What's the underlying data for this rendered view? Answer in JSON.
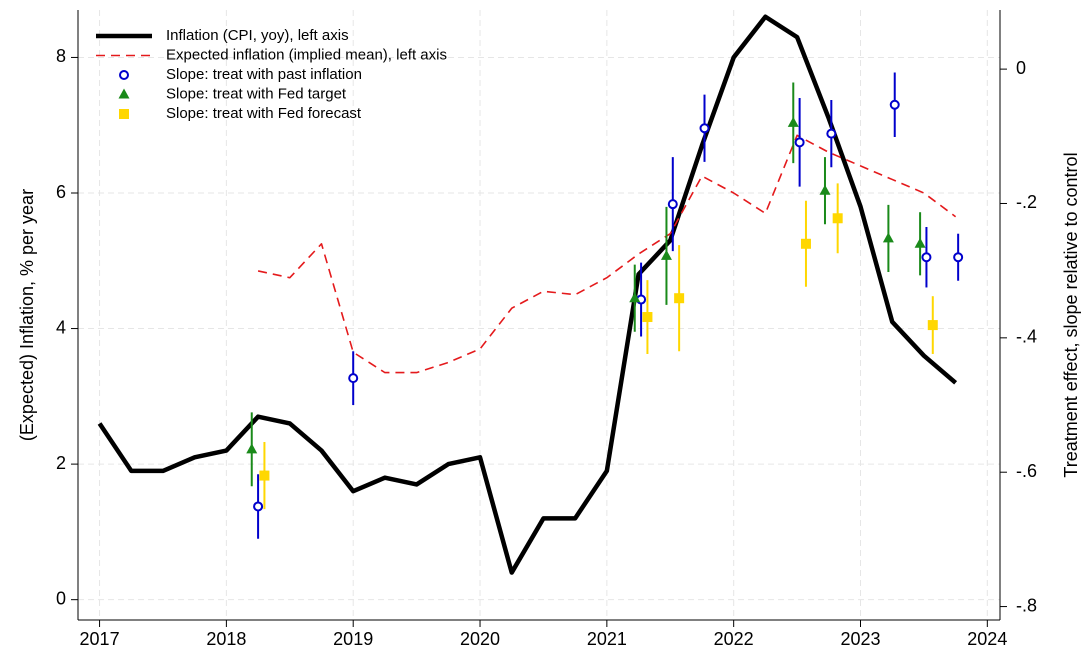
{
  "chart_data": {
    "type": "line",
    "y_label": "(Expected) Inflation, % per year",
    "y2_label": "Treatment effect, slope relative to control",
    "xlim": [
      2016.83,
      2024.1
    ],
    "xticks": [
      2017,
      2018,
      2019,
      2020,
      2021,
      2022,
      2023,
      2024
    ],
    "ylim": [
      -0.3,
      8.7
    ],
    "yticks": [
      0,
      2,
      4,
      6,
      8
    ],
    "y2lim": [
      -0.82,
      0.088
    ],
    "y2ticks": [
      0,
      {
        "value": -0.2,
        "label": "-.2"
      },
      {
        "value": -0.4,
        "label": "-.4"
      },
      {
        "value": -0.6,
        "label": "-.6"
      },
      {
        "value": -0.8,
        "label": "-.8"
      }
    ],
    "grid": true,
    "legend": "upper left",
    "series": [
      {
        "name": "Inflation (CPI, yoy), left axis",
        "type": "line",
        "style": "solid",
        "color": "#000000",
        "x": [
          2017,
          2017.25,
          2017.5,
          2017.75,
          2018,
          2018.25,
          2018.5,
          2018.75,
          2019,
          2019.25,
          2019.5,
          2019.75,
          2020,
          2020.25,
          2020.5,
          2020.75,
          2021,
          2021.25,
          2021.5,
          2021.75,
          2022,
          2022.25,
          2022.5,
          2022.75,
          2023,
          2023.25,
          2023.5,
          2023.75
        ],
        "values": [
          2.6,
          1.9,
          1.9,
          2.1,
          2.2,
          2.7,
          2.6,
          2.2,
          1.6,
          1.8,
          1.7,
          2.0,
          2.1,
          0.4,
          1.2,
          1.2,
          1.9,
          4.8,
          5.3,
          6.7,
          8.0,
          8.6,
          8.3,
          7.1,
          5.8,
          4.1,
          3.6,
          3.2
        ]
      },
      {
        "name": "Expected inflation (implied mean), left axis",
        "type": "line",
        "style": "dashed",
        "color": "#e41a1c",
        "x": [
          2018.25,
          2018.5,
          2018.75,
          2019,
          2019.25,
          2019.5,
          2019.75,
          2020,
          2020.25,
          2020.5,
          2020.75,
          2021,
          2021.25,
          2021.5,
          2021.75,
          2022,
          2022.25,
          2022.5,
          2022.75,
          2023,
          2023.25,
          2023.5,
          2023.75
        ],
        "values": [
          4.85,
          4.75,
          5.25,
          3.65,
          3.35,
          3.35,
          3.5,
          3.7,
          4.3,
          4.55,
          4.5,
          4.75,
          5.1,
          5.4,
          6.25,
          6.0,
          5.7,
          6.85,
          6.6,
          6.4,
          6.2,
          6.0,
          5.65
        ]
      },
      {
        "name": "Slope: treat with past inflation",
        "type": "scatter",
        "marker": "circle",
        "axis": "y2",
        "color": "#0000cc",
        "x": [
          2018.25,
          2019,
          2021.27,
          2021.52,
          2021.77,
          2022.52,
          2022.77,
          2023.27,
          2023.52,
          2023.77
        ],
        "values": [
          -0.651,
          -0.46,
          -0.343,
          -0.201,
          -0.088,
          -0.109,
          -0.096,
          -0.053,
          -0.28,
          -0.28
        ],
        "errors": [
          0.048,
          0.04,
          0.055,
          0.07,
          0.05,
          0.066,
          0.05,
          0.048,
          0.045,
          0.035
        ]
      },
      {
        "name": "Slope: treat with Fed target",
        "type": "scatter",
        "marker": "triangle",
        "axis": "y2",
        "color": "#1a8a1a",
        "x": [
          2018.2,
          2021.22,
          2021.47,
          2022.47,
          2022.72,
          2023.22,
          2023.47
        ],
        "values": [
          -0.566,
          -0.341,
          -0.278,
          -0.08,
          -0.181,
          -0.252,
          -0.26
        ],
        "errors": [
          0.055,
          0.05,
          0.073,
          0.06,
          0.05,
          0.05,
          0.047
        ]
      },
      {
        "name": "Slope: treat with Fed forecast",
        "type": "scatter",
        "marker": "square",
        "axis": "y2",
        "color": "#ffd700",
        "x": [
          2018.3,
          2021.32,
          2021.57,
          2022.57,
          2022.82,
          2023.57
        ],
        "values": [
          -0.605,
          -0.369,
          -0.341,
          -0.26,
          -0.222,
          -0.381
        ],
        "errors": [
          0.05,
          0.055,
          0.079,
          0.064,
          0.052,
          0.043
        ]
      }
    ]
  }
}
